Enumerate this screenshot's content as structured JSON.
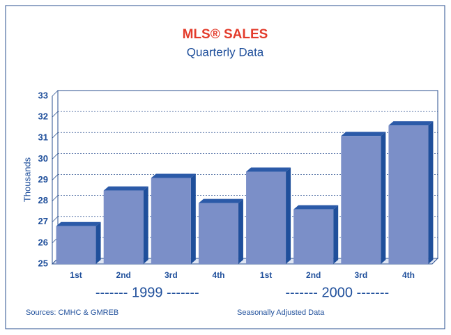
{
  "chart_data": {
    "type": "bar3d",
    "title": "MLS® SALES",
    "subtitle": "Quarterly Data",
    "y_label": "Thousands",
    "categories": [
      "1st",
      "2nd",
      "3rd",
      "4th",
      "1st",
      "2nd",
      "3rd",
      "4th"
    ],
    "values": [
      26.8,
      28.5,
      29.1,
      27.9,
      29.4,
      27.6,
      31.1,
      31.6
    ],
    "color": "#7b8fc8",
    "ylim": [
      25,
      33
    ],
    "yticks": [
      25,
      26,
      27,
      28,
      29,
      30,
      31,
      32,
      33
    ],
    "grid": true,
    "groups": [
      "------- 1999 -------",
      "------- 2000 -------"
    ],
    "notes": [
      "Sources: CMHC & GMREB",
      "Seasonally Adjusted Data"
    ]
  }
}
